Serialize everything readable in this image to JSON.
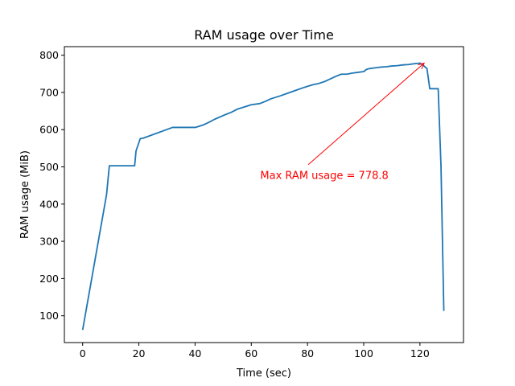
{
  "chart_data": {
    "type": "line",
    "title": "RAM usage over Time",
    "xlabel": "Time (sec)",
    "ylabel": "RAM usage (MiB)",
    "xlim": [
      -6.5,
      135.5
    ],
    "ylim": [
      28,
      823
    ],
    "xticks": [
      0,
      20,
      40,
      60,
      80,
      100,
      120
    ],
    "yticks": [
      100,
      200,
      300,
      400,
      500,
      600,
      700,
      800
    ],
    "grid": false,
    "colors": {
      "line": "#1f77b4",
      "annotation": "#ff0000"
    },
    "series": [
      {
        "x": [
          0,
          8.5,
          9.5,
          18.5,
          19,
          20.5,
          21.5,
          32,
          40,
          41,
          43,
          45,
          47,
          50,
          53,
          55,
          58,
          60,
          63,
          65,
          67,
          70,
          73,
          76,
          79,
          82,
          84,
          86,
          88,
          90,
          92,
          94,
          96,
          98,
          100,
          101,
          102,
          104,
          106,
          108,
          110,
          112,
          114,
          116,
          118,
          120,
          121,
          122.5,
          123.5,
          126.5,
          127.5,
          128.5
        ],
        "y": [
          62,
          425,
          503,
          503,
          543,
          576,
          577,
          606,
          606,
          608,
          613,
          620,
          628,
          638,
          647,
          655,
          662,
          667,
          670,
          676,
          683,
          690,
          698,
          706,
          714,
          721,
          724,
          729,
          736,
          743,
          749,
          749,
          752,
          754,
          756,
          762,
          764,
          766,
          768,
          769,
          771,
          772,
          774,
          775,
          777,
          778.8,
          774,
          764,
          710,
          710,
          500,
          113
        ]
      }
    ],
    "annotation": {
      "text": "Max RAM usage = 778.8",
      "point": [
        121.5,
        778.8
      ],
      "text_pos": [
        86,
        478
      ]
    }
  }
}
